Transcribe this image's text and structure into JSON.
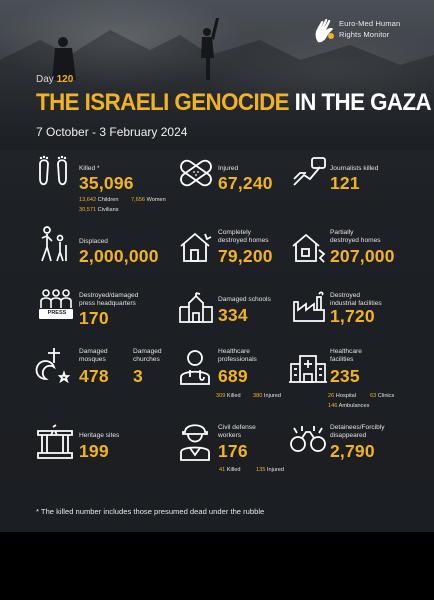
{
  "header": {
    "org_line1": "Euro-Med Human",
    "org_line2": "Rights Monitor",
    "day_label": "Day",
    "day_number": "120",
    "title_highlight": "THE ISRAELI GENOCIDE",
    "title_rest": " IN THE GAZA STRIP",
    "date_range": "7 October - 3 February 2024"
  },
  "stats": {
    "killed": {
      "label": "Killed *",
      "value": "35,096",
      "children_num": "13,642",
      "children_label": "Children",
      "women_num": "7,656",
      "women_label": "Women",
      "civilians_num": "30,571",
      "civilians_label": "Civilians"
    },
    "injured": {
      "label": "Injured",
      "value": "67,240"
    },
    "journalists": {
      "label": "Journalists killed",
      "value": "121"
    },
    "displaced": {
      "label": "Displaced",
      "value": "2,000,000"
    },
    "destroyed_homes": {
      "label_1": "Completely",
      "label_2": "destroyed homes",
      "value": "79,200"
    },
    "partial_homes": {
      "label_1": "Partially",
      "label_2": "destroyed homes",
      "value": "207,000"
    },
    "press_hq": {
      "label_1": "Destroyed/damaged",
      "label_2": "press headquarters",
      "value": "170",
      "badge": "PRESS"
    },
    "schools": {
      "label": "Damaged schools",
      "value": "334"
    },
    "industrial": {
      "label_1": "Destroyed",
      "label_2": "industrial facilities",
      "value": "1,720"
    },
    "mosques": {
      "label_1": "Damaged",
      "label_2": "mosques",
      "value": "478"
    },
    "churches": {
      "label_1": "Damaged",
      "label_2": "churches",
      "value": "3"
    },
    "healthcare_pros": {
      "label_1": "Healthcare",
      "label_2": "professionals",
      "value": "689",
      "killed_num": "309",
      "killed_label": "Killed",
      "injured_num": "380",
      "injured_label": "Injured"
    },
    "healthcare_fac": {
      "label_1": "Healthcare",
      "label_2": "facilities",
      "value": "235",
      "hospital_num": "26",
      "hospital_label": "Hospital",
      "clinics_num": "63",
      "clinics_label": "Clinics",
      "ambulances_num": "146",
      "ambulances_label": "Ambulances"
    },
    "heritage": {
      "label": "Heritage sites",
      "value": "199"
    },
    "civil_defense": {
      "label_1": "Civil defense",
      "label_2": "workers",
      "value": "176",
      "killed_num": "41",
      "killed_label": "Killed",
      "injured_num": "135",
      "injured_label": "Injured"
    },
    "detainees": {
      "label_1": "Detainees/Forcibly",
      "label_2": "disappeared",
      "value": "2,790"
    }
  },
  "footnote": "* The killed number includes those presumed dead under the rubble",
  "colors": {
    "accent": "#f2b320",
    "background": "#1d2024",
    "text": "#ffffff"
  }
}
